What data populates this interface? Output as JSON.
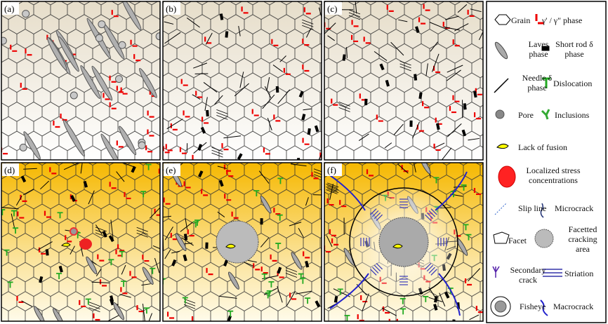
{
  "panels": [
    {
      "label": "(a)"
    },
    {
      "label": "(b)"
    },
    {
      "label": "(c)"
    },
    {
      "label": "(d)"
    },
    {
      "label": "(e)"
    },
    {
      "label": "(f)"
    }
  ],
  "legend": [
    {
      "label": "Grain"
    },
    {
      "label": "γ' / γ\" phase"
    },
    {
      "label": "Laves phase"
    },
    {
      "label": "Short rod δ phase"
    },
    {
      "label": "Needle δ phase"
    },
    {
      "label": "Dislocation"
    },
    {
      "label": "Pore"
    },
    {
      "label": "Inclusions"
    },
    {
      "label": "Lack of fusion"
    },
    {
      "label": "Localized stress concentrations"
    },
    {
      "label": "Slip line"
    },
    {
      "label": "Microcrack"
    },
    {
      "label": "Facet"
    },
    {
      "label": "Facetted cracking area"
    },
    {
      "label": "Secondary crack"
    },
    {
      "label": "Striation"
    },
    {
      "label": "Fisheye"
    },
    {
      "label": "Macrocrack"
    }
  ]
}
